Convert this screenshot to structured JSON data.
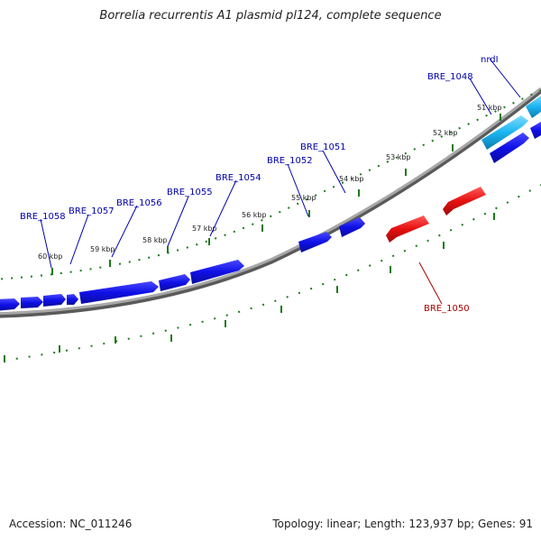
{
  "title": "Borrelia recurrentis A1 plasmid pl124, complete sequence",
  "footer": {
    "accession": "Accession: NC_011246",
    "summary": "Topology: linear; Length: 123,937 bp; Genes: 91"
  },
  "colors": {
    "backbone": "#8a8a8a",
    "tick": "#1a7a1a",
    "forward_gene": "#1010e6",
    "reverse_gene": "#e61010",
    "highlight_gene": "#19b4f0",
    "forward_label": "#0000aa",
    "reverse_label": "#aa0000"
  },
  "ticks": [
    {
      "label": "51 kbp",
      "pos_kbp": 51
    },
    {
      "label": "52 kbp",
      "pos_kbp": 52
    },
    {
      "label": "53 kbp",
      "pos_kbp": 53
    },
    {
      "label": "54 kbp",
      "pos_kbp": 54
    },
    {
      "label": "55 kbp",
      "pos_kbp": 55
    },
    {
      "label": "56 kbp",
      "pos_kbp": 56
    },
    {
      "label": "57 kbp",
      "pos_kbp": 57
    },
    {
      "label": "58 kbp",
      "pos_kbp": 58
    },
    {
      "label": "59 kbp",
      "pos_kbp": 59
    },
    {
      "label": "60 kbp",
      "pos_kbp": 60
    }
  ],
  "gene_labels": [
    {
      "name": "nrdI",
      "strand": "forward"
    },
    {
      "name": "BRE_1048",
      "strand": "forward"
    },
    {
      "name": "BRE_1050",
      "strand": "reverse"
    },
    {
      "name": "BRE_1051",
      "strand": "forward"
    },
    {
      "name": "BRE_1052",
      "strand": "forward"
    },
    {
      "name": "BRE_1054",
      "strand": "forward"
    },
    {
      "name": "BRE_1055",
      "strand": "forward"
    },
    {
      "name": "BRE_1056",
      "strand": "forward"
    },
    {
      "name": "BRE_1057",
      "strand": "forward"
    },
    {
      "name": "BRE_1058",
      "strand": "forward"
    }
  ]
}
